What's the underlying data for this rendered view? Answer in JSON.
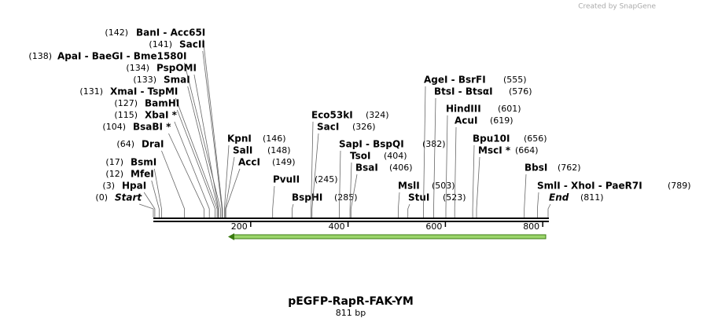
{
  "header": {
    "credit": "Created by SnapGene"
  },
  "enzymes": [
    {
      "name": "BanI  - Acc65I",
      "pos": "(142)"
    },
    {
      "name": "SacII",
      "pos": "(141)"
    },
    {
      "name": "ApaI  - BaeGI  - Bme1580I",
      "pos": "(138)"
    },
    {
      "name": "PspOMI",
      "pos": "(134)"
    },
    {
      "name": "SmaI",
      "pos": "(133)"
    },
    {
      "name": "XmaI  - TspMI",
      "pos": "(131)"
    },
    {
      "name": "BamHI",
      "pos": "(127)"
    },
    {
      "name": "XbaI *",
      "pos": "(115)"
    },
    {
      "name": "BsaBI *",
      "pos": "(104)"
    },
    {
      "name": "DraI",
      "pos": "(64)"
    },
    {
      "name": "BsmI",
      "pos": "(17)"
    },
    {
      "name": "MfeI",
      "pos": "(12)"
    },
    {
      "name": "HpaI",
      "pos": "(3)"
    },
    {
      "name": "Start",
      "pos": "(0)"
    },
    {
      "name": "KpnI",
      "pos": "(146)"
    },
    {
      "name": "SalI",
      "pos": "(148)"
    },
    {
      "name": "AccI",
      "pos": "(149)"
    },
    {
      "name": "PvuII",
      "pos": "(245)"
    },
    {
      "name": "BspHI",
      "pos": "(285)"
    },
    {
      "name": "Eco53kI",
      "pos": "(324)"
    },
    {
      "name": "SacI",
      "pos": "(326)"
    },
    {
      "name": "SapI  - BspQI",
      "pos": "(382)"
    },
    {
      "name": "TsoI",
      "pos": "(404)"
    },
    {
      "name": "BsaI",
      "pos": "(406)"
    },
    {
      "name": "MslI",
      "pos": "(503)"
    },
    {
      "name": "StuI",
      "pos": "(523)"
    },
    {
      "name": "AgeI  - BsrFI",
      "pos": "(555)"
    },
    {
      "name": "BtsI  - BtsαI",
      "pos": "(576)"
    },
    {
      "name": "HindIII",
      "pos": "(601)"
    },
    {
      "name": "AcuI",
      "pos": "(619)"
    },
    {
      "name": "Bpu10I",
      "pos": "(656)"
    },
    {
      "name": "MscI *",
      "pos": "(664)"
    },
    {
      "name": "BbsI",
      "pos": "(762)"
    },
    {
      "name": "SmlI  - XhoI  - PaeR7I",
      "pos": "(789)"
    },
    {
      "name": "End",
      "pos": "(811)"
    }
  ],
  "scale": [
    200,
    400,
    600,
    800
  ],
  "title": "pEGFP-RapR-FAK-YM",
  "length": "811 bp"
}
